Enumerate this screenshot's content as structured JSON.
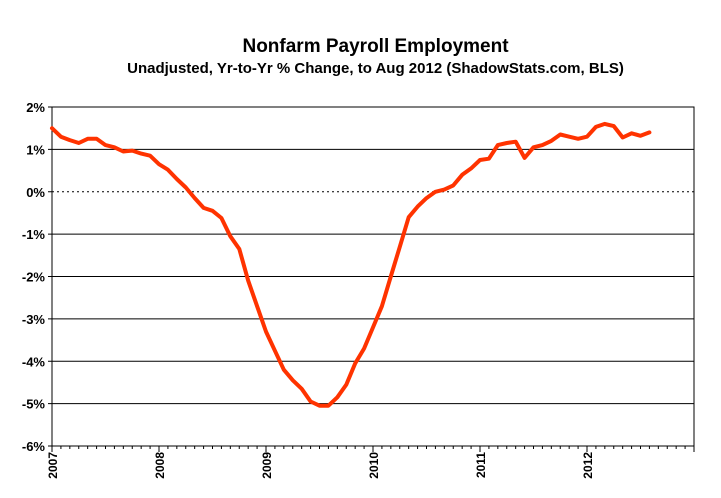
{
  "chart_data": {
    "type": "line",
    "title": "Nonfarm Payroll Employment",
    "subtitle": "Unadjusted, Yr-to-Yr % Change, to Aug 2012 (ShadowStats.com, BLS)",
    "xlabel": "",
    "ylabel": "",
    "ylim": [
      -6,
      2
    ],
    "xlim": [
      "2007-01",
      "2013-01"
    ],
    "y_ticks": [
      "2%",
      "1%",
      "0%",
      "-1%",
      "-2%",
      "-3%",
      "-4%",
      "-5%",
      "-6%"
    ],
    "y_tick_values": [
      2,
      1,
      0,
      -1,
      -2,
      -3,
      -4,
      -5,
      -6
    ],
    "x_ticks": [
      "2007",
      "2008",
      "2009",
      "2010",
      "2011",
      "2012"
    ],
    "grid": true,
    "series": [
      {
        "color": "#ff3300",
        "x": [
          "2007-01",
          "2007-02",
          "2007-03",
          "2007-04",
          "2007-05",
          "2007-06",
          "2007-07",
          "2007-08",
          "2007-09",
          "2007-10",
          "2007-11",
          "2007-12",
          "2008-01",
          "2008-02",
          "2008-03",
          "2008-04",
          "2008-05",
          "2008-06",
          "2008-07",
          "2008-08",
          "2008-09",
          "2008-10",
          "2008-11",
          "2008-12",
          "2009-01",
          "2009-02",
          "2009-03",
          "2009-04",
          "2009-05",
          "2009-06",
          "2009-07",
          "2009-08",
          "2009-09",
          "2009-10",
          "2009-11",
          "2009-12",
          "2010-01",
          "2010-02",
          "2010-03",
          "2010-04",
          "2010-05",
          "2010-06",
          "2010-07",
          "2010-08",
          "2010-09",
          "2010-10",
          "2010-11",
          "2010-12",
          "2011-01",
          "2011-02",
          "2011-03",
          "2011-04",
          "2011-05",
          "2011-06",
          "2011-07",
          "2011-08",
          "2011-09",
          "2011-10",
          "2011-11",
          "2011-12",
          "2012-01",
          "2012-02",
          "2012-03",
          "2012-04",
          "2012-05",
          "2012-06",
          "2012-07",
          "2012-08"
        ],
        "values": [
          1.5,
          1.3,
          1.22,
          1.15,
          1.25,
          1.25,
          1.1,
          1.05,
          0.95,
          0.97,
          0.9,
          0.85,
          0.65,
          0.52,
          0.3,
          0.1,
          -0.15,
          -0.38,
          -0.45,
          -0.62,
          -1.05,
          -1.35,
          -2.1,
          -2.7,
          -3.3,
          -3.75,
          -4.2,
          -4.45,
          -4.65,
          -4.95,
          -5.05,
          -5.05,
          -4.85,
          -4.55,
          -4.05,
          -3.7,
          -3.2,
          -2.7,
          -2.0,
          -1.3,
          -0.6,
          -0.35,
          -0.15,
          0.0,
          0.05,
          0.15,
          0.4,
          0.55,
          0.75,
          0.78,
          1.1,
          1.15,
          1.18,
          0.8,
          1.05,
          1.1,
          1.2,
          1.35,
          1.3,
          1.25,
          1.3,
          1.53,
          1.6,
          1.55,
          1.28,
          1.38,
          1.32,
          1.4
        ]
      }
    ]
  }
}
